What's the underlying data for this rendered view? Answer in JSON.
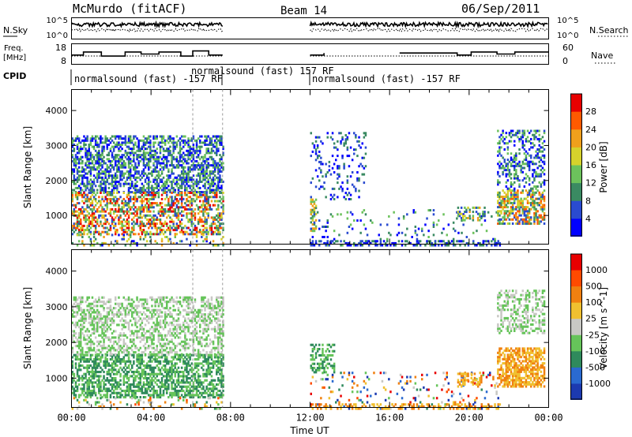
{
  "header": {
    "station": "McMurdo (fitACF)",
    "beam": "Beam 14",
    "date": "06/Sep/2011"
  },
  "strips": {
    "nsky_label": "N.Sky",
    "nsearch_label": "N.Search",
    "freq_label": "Freq.",
    "freq_unit": "[MHz]",
    "nave_label": "Nave",
    "cpid_label": "CPID",
    "nsky_ticks": [
      "10^5",
      "10^0"
    ],
    "nsearch_ticks": [
      "10^5",
      "10^0"
    ],
    "freq_ticks": [
      "18",
      "8"
    ],
    "nave_ticks": [
      "60",
      "0"
    ],
    "cpid_segments": [
      {
        "text": "normalsound (fast) -157 RF"
      },
      {
        "text": "normalsound (fast) 157 RF"
      },
      {
        "text": "normalsound (fast) -157 RF"
      }
    ],
    "freq_steps": [
      [
        0.0,
        12.5
      ],
      [
        0.6,
        12.5
      ],
      [
        0.6,
        14
      ],
      [
        1.5,
        14
      ],
      [
        1.5,
        12
      ],
      [
        2.7,
        12
      ],
      [
        2.7,
        14
      ],
      [
        3.5,
        14
      ],
      [
        3.5,
        13
      ],
      [
        4.4,
        13
      ],
      [
        4.4,
        14
      ],
      [
        5.5,
        14
      ],
      [
        5.5,
        12
      ],
      [
        6.1,
        12
      ],
      [
        6.1,
        14.5
      ],
      [
        6.9,
        14.5
      ],
      [
        6.9,
        12.5
      ],
      [
        7.6,
        12.5
      ],
      [
        12.0,
        12.5
      ],
      [
        12.7,
        12.5
      ],
      [
        12.7,
        13.5
      ],
      [
        16.5,
        13.5
      ],
      [
        16.5,
        13.5
      ],
      [
        19.4,
        13.5
      ],
      [
        19.4,
        12.5
      ],
      [
        20.1,
        12.5
      ],
      [
        20.1,
        14
      ],
      [
        21.4,
        14
      ],
      [
        21.4,
        13
      ],
      [
        22.3,
        13
      ],
      [
        22.3,
        14
      ],
      [
        24.0,
        14
      ]
    ]
  },
  "chart_data": [
    {
      "type": "heatmap",
      "name": "power",
      "ylabel": "Slant Range [km]",
      "yticks": [
        "1000",
        "2000",
        "3000",
        "4000"
      ],
      "ylim": [
        180,
        4600
      ],
      "xlim": [
        0,
        24
      ],
      "colorbar_label": "Power [dB]",
      "colorbar_ticks": [
        "4",
        "8",
        "12",
        "16",
        "20",
        "24",
        "28"
      ],
      "colorbar_colors": [
        "#0000ff",
        "#2a4bd0",
        "#3a8a62",
        "#6cc25c",
        "#d6d22c",
        "#f0a01c",
        "#ff5a00",
        "#e80000"
      ],
      "scatter_regions": [
        {
          "t0": 0.0,
          "t1": 7.6,
          "r0": 1700,
          "r1": 3300,
          "dens": 0.55,
          "cmin": 0,
          "cmax": 3
        },
        {
          "t0": 0.0,
          "t1": 7.6,
          "r0": 500,
          "r1": 1700,
          "dens": 0.5,
          "cmin": 1,
          "cmax": 7
        },
        {
          "t0": 0.0,
          "t1": 7.6,
          "r0": 180,
          "r1": 500,
          "dens": 0.2,
          "cmin": 0,
          "cmax": 5
        },
        {
          "t0": 12.0,
          "t1": 12.3,
          "r0": 600,
          "r1": 1500,
          "dens": 0.6,
          "cmin": 2,
          "cmax": 5
        },
        {
          "t0": 12.0,
          "t1": 14.8,
          "r0": 1500,
          "r1": 3400,
          "dens": 0.15,
          "cmin": 0,
          "cmax": 2
        },
        {
          "t0": 12.0,
          "t1": 21.5,
          "r0": 180,
          "r1": 1200,
          "dens": 0.07,
          "cmin": 0,
          "cmax": 3
        },
        {
          "t0": 12.0,
          "t1": 21.5,
          "r0": 180,
          "r1": 350,
          "dens": 0.4,
          "cmin": 0,
          "cmax": 2
        },
        {
          "t0": 19.4,
          "t1": 20.8,
          "r0": 900,
          "r1": 1300,
          "dens": 0.45,
          "cmin": 1,
          "cmax": 5
        },
        {
          "t0": 21.4,
          "t1": 23.8,
          "r0": 800,
          "r1": 1800,
          "dens": 0.6,
          "cmin": 1,
          "cmax": 6
        },
        {
          "t0": 21.4,
          "t1": 23.8,
          "r0": 1800,
          "r1": 3500,
          "dens": 0.35,
          "cmin": 0,
          "cmax": 3
        }
      ]
    },
    {
      "type": "heatmap",
      "name": "velocity",
      "ylabel": "Slant Range [km]",
      "yticks": [
        "1000",
        "2000",
        "3000",
        "4000"
      ],
      "ylim": [
        180,
        4600
      ],
      "xlim": [
        0,
        24
      ],
      "xlabel": "Time UT",
      "xticks": [
        "00:00",
        "04:00",
        "08:00",
        "12:00",
        "16:00",
        "20:00",
        "00:00"
      ],
      "colorbar_label": "Velocity [m s^-1]",
      "colorbar_ticks": [
        "1000",
        "500",
        "100",
        "25",
        "-25",
        "-100",
        "-500",
        "-1000"
      ],
      "colorbar_colors": [
        "#1c3ab0",
        "#2a6ad0",
        "#2f8a5c",
        "#66c45a",
        "#c8c8c4",
        "#f0c030",
        "#f08010",
        "#ff4a00",
        "#e80000"
      ],
      "scatter_regions": [
        {
          "t0": 0.0,
          "t1": 7.6,
          "r0": 500,
          "r1": 1700,
          "dens": 0.55,
          "cmin": 2,
          "cmax": 3
        },
        {
          "t0": 0.0,
          "t1": 7.6,
          "r0": 1700,
          "r1": 3300,
          "dens": 0.45,
          "cmin": 3,
          "cmax": 4
        },
        {
          "t0": 0.0,
          "t1": 7.6,
          "r0": 180,
          "r1": 500,
          "dens": 0.15,
          "cmin": 2,
          "cmax": 7
        },
        {
          "t0": 12.0,
          "t1": 13.2,
          "r0": 1200,
          "r1": 2000,
          "dens": 0.4,
          "cmin": 2,
          "cmax": 3
        },
        {
          "t0": 12.0,
          "t1": 21.5,
          "r0": 180,
          "r1": 1200,
          "dens": 0.09,
          "cmin": 0,
          "cmax": 8
        },
        {
          "t0": 12.0,
          "t1": 21.5,
          "r0": 180,
          "r1": 350,
          "dens": 0.35,
          "cmin": 5,
          "cmax": 6
        },
        {
          "t0": 19.4,
          "t1": 20.6,
          "r0": 800,
          "r1": 1200,
          "dens": 0.45,
          "cmin": 5,
          "cmax": 6
        },
        {
          "t0": 21.4,
          "t1": 23.8,
          "r0": 800,
          "r1": 1900,
          "dens": 0.65,
          "cmin": 5,
          "cmax": 6
        },
        {
          "t0": 21.4,
          "t1": 23.8,
          "r0": 2300,
          "r1": 3500,
          "dens": 0.4,
          "cmin": 3,
          "cmax": 4
        }
      ]
    }
  ]
}
